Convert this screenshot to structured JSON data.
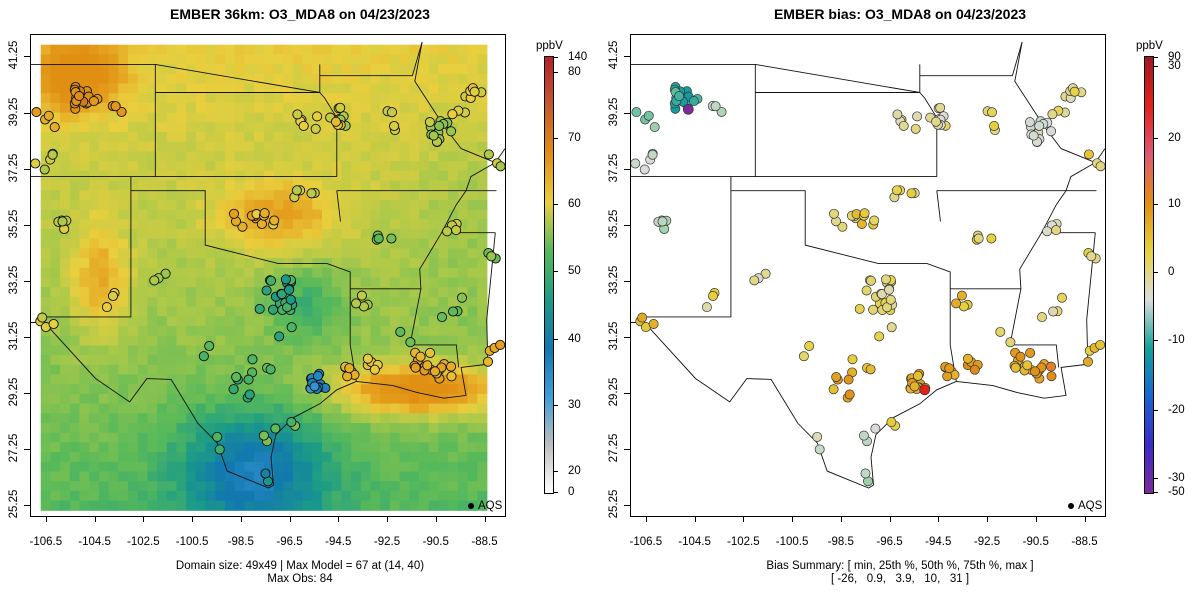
{
  "left": {
    "title": "EMBER 36km: O3_MDA8 on 04/23/2023",
    "footer_line1": "Domain size: 49x49 | Max Model = 67 at (14, 40)",
    "footer_line2": "Max Obs: 84",
    "colorbar": {
      "unit": "ppbV",
      "labels": [
        "140",
        "80",
        "70",
        "60",
        "50",
        "40",
        "30",
        "20",
        "0"
      ],
      "colors": [
        "#ffffff",
        "#bdbdbd",
        "#3c9ed9",
        "#1277b0",
        "#1b9b87",
        "#57b95a",
        "#e9cf3e",
        "#e08f12",
        "#c45a2b",
        "#b3202f"
      ]
    },
    "legend": "AQS"
  },
  "right": {
    "title": "EMBER bias: O3_MDA8 on 04/23/2023",
    "footer_line1": "Bias Summary: [ min, 25th %, 50th %, 75th %, max ]",
    "footer_line2": "[ -26,   0.9,   3.9,   10,   31 ]",
    "colorbar": {
      "unit": "ppbV",
      "labels": [
        "90",
        "30",
        "20",
        "10",
        "0",
        "-10",
        "-20",
        "-30",
        "-50"
      ],
      "colors": [
        "#7d2a9a",
        "#3a2cc4",
        "#1a66cc",
        "#14a39a",
        "#dcdcdc",
        "#e6d23e",
        "#e08d14",
        "#dc5a74",
        "#e3201b",
        "#9b1a22"
      ]
    },
    "legend": "AQS"
  },
  "x_ticks": [
    "-106.5",
    "-104.5",
    "-102.5",
    "-100.5",
    "-98.5",
    "-96.5",
    "-94.5",
    "-92.5",
    "-90.5",
    "-88.5"
  ],
  "y_ticks": [
    "41.25",
    "39.25",
    "37.25",
    "35.25",
    "33.25",
    "31.25",
    "29.25",
    "27.25",
    "25.25"
  ]
}
